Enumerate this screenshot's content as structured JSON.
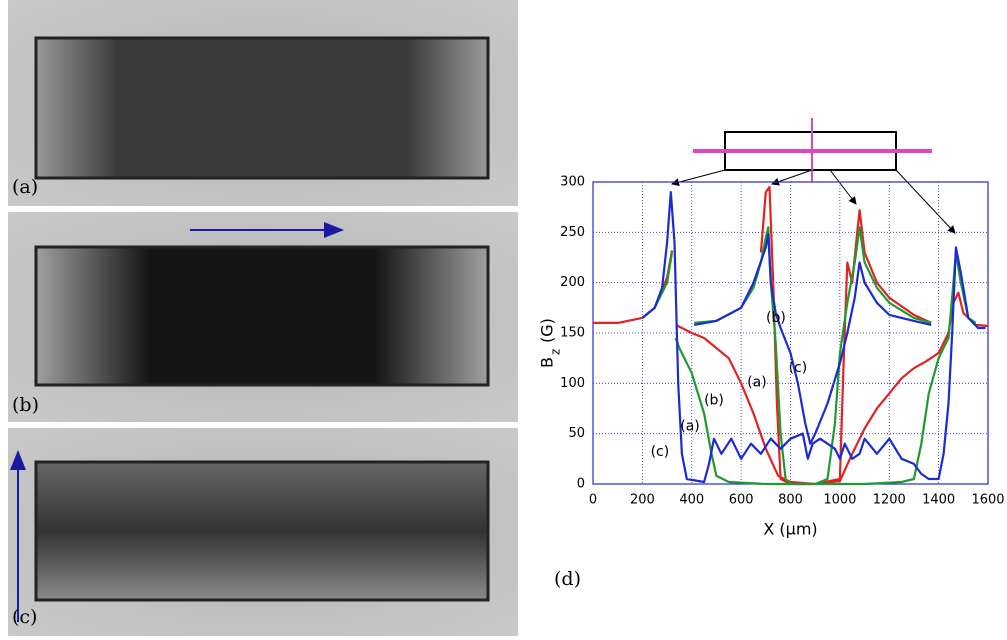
{
  "panels": [
    {
      "label": "(a)"
    },
    {
      "label": "(b)"
    },
    {
      "label": "(c)"
    }
  ],
  "figure_label": "(d)",
  "chart_data": {
    "type": "line",
    "xlabel": "X (µm)",
    "ylabel_base": "B",
    "ylabel_sub": "z",
    "ylabel_unit": "(G)",
    "xlim": [
      0,
      1600
    ],
    "xticks": [
      0,
      200,
      400,
      600,
      800,
      1000,
      1200,
      1400,
      1600
    ],
    "ylim": [
      0,
      300
    ],
    "yticks": [
      0,
      50,
      100,
      150,
      200,
      250,
      300
    ],
    "grid": true,
    "series": [
      {
        "color": "#e32222",
        "x": [
          0,
          100,
          200,
          250,
          300,
          320,
          null,
          335,
          400,
          450,
          500,
          550,
          600,
          650,
          700,
          750,
          800,
          900,
          1000,
          1050,
          1100,
          1150,
          1200,
          1250,
          1300,
          1350,
          1400,
          1440,
          1460,
          1480,
          1500,
          1550,
          1600,
          null,
          680,
          700,
          715,
          730,
          745,
          760,
          800,
          900,
          1000,
          1015,
          1030,
          1050,
          1070,
          1080,
          1100,
          1150,
          1200,
          1300,
          1370
        ],
        "values": [
          160,
          160,
          165,
          175,
          205,
          232,
          null,
          158,
          150,
          145,
          135,
          125,
          100,
          70,
          35,
          8,
          2,
          0,
          3,
          30,
          55,
          75,
          90,
          105,
          115,
          122,
          130,
          150,
          180,
          190,
          170,
          158,
          157,
          null,
          230,
          290,
          295,
          200,
          80,
          5,
          0,
          0,
          5,
          120,
          220,
          200,
          250,
          272,
          230,
          200,
          185,
          168,
          160
        ]
      },
      {
        "color": "#1f9a2e",
        "x": [
          200,
          250,
          300,
          320,
          null,
          335,
          350,
          400,
          450,
          480,
          500,
          550,
          700,
          900,
          1100,
          1250,
          1300,
          1330,
          1360,
          1400,
          1440,
          1460,
          1470,
          1490,
          1520,
          1550,
          null,
          410,
          500,
          600,
          650,
          680,
          700,
          710,
          720,
          740,
          760,
          780,
          800,
          900,
          950,
          980,
          1000,
          1030,
          1060,
          1080,
          1100,
          1150,
          1200,
          1300,
          1370
        ],
        "values": [
          165,
          175,
          200,
          230,
          null,
          145,
          135,
          110,
          70,
          30,
          8,
          2,
          0,
          0,
          0,
          2,
          5,
          40,
          90,
          125,
          145,
          200,
          230,
          200,
          165,
          160,
          null,
          160,
          162,
          175,
          195,
          220,
          245,
          255,
          200,
          140,
          50,
          5,
          0,
          0,
          5,
          60,
          130,
          180,
          220,
          255,
          220,
          195,
          180,
          165,
          160
        ]
      },
      {
        "color": "#1a2bd4",
        "x": [
          200,
          250,
          280,
          300,
          315,
          330,
          345,
          360,
          380,
          450,
          470,
          490,
          520,
          560,
          600,
          640,
          680,
          720,
          760,
          800,
          850,
          870,
          890,
          920,
          950,
          980,
          1000,
          1020,
          1050,
          1080,
          1100,
          1150,
          1200,
          1250,
          1300,
          1330,
          1360,
          1400,
          1420,
          1440,
          1455,
          1470,
          1490,
          1520,
          1560,
          1590,
          null,
          410,
          500,
          600,
          650,
          700,
          710,
          720,
          740,
          760,
          800,
          830,
          860,
          880,
          900,
          950,
          1000,
          1030,
          1060,
          1080,
          1100,
          1150,
          1200,
          1300,
          1370
        ],
        "values": [
          165,
          175,
          195,
          240,
          290,
          240,
          100,
          30,
          5,
          2,
          20,
          45,
          30,
          45,
          25,
          40,
          30,
          45,
          35,
          45,
          50,
          25,
          40,
          45,
          40,
          35,
          25,
          40,
          25,
          30,
          45,
          30,
          45,
          25,
          20,
          10,
          5,
          5,
          30,
          80,
          150,
          235,
          210,
          165,
          155,
          155,
          null,
          158,
          162,
          175,
          200,
          235,
          248,
          200,
          170,
          155,
          130,
          100,
          60,
          40,
          50,
          80,
          120,
          150,
          185,
          220,
          200,
          180,
          168,
          162,
          158
        ]
      }
    ],
    "annotations": [
      {
        "text": "(b)",
        "x": 741,
        "y": 165
      },
      {
        "text": "(c)",
        "x": 830,
        "y": 115
      },
      {
        "text": "(a)",
        "x": 664,
        "y": 101
      },
      {
        "text": "(b)",
        "x": 490,
        "y": 83
      },
      {
        "text": "(a)",
        "x": 393,
        "y": 57
      },
      {
        "text": "(c)",
        "x": 271,
        "y": 32
      }
    ]
  }
}
